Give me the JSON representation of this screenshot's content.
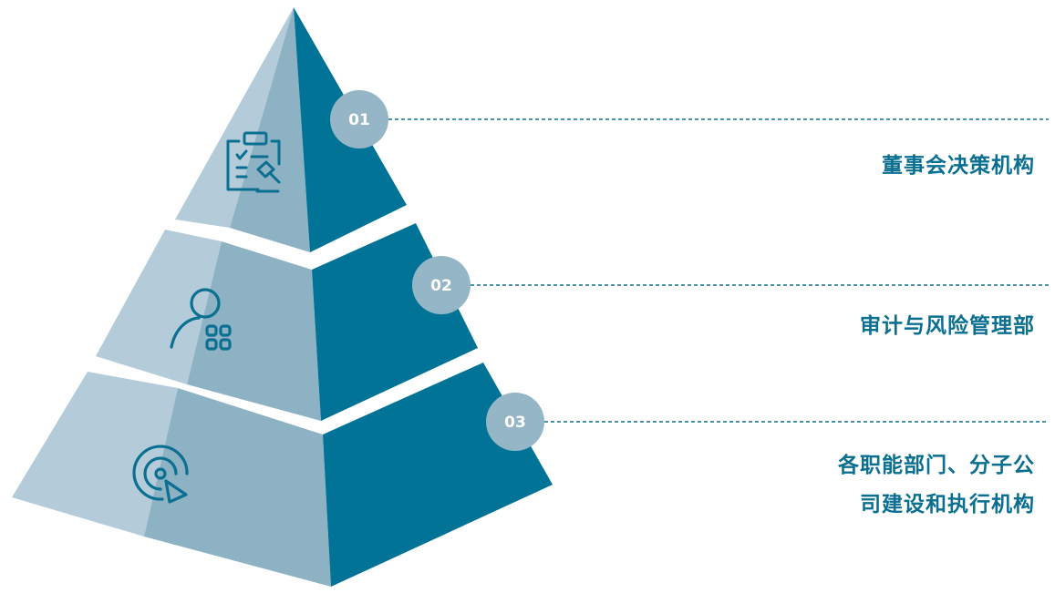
{
  "levels": [
    {
      "number": "01",
      "label": "董事会决策机构",
      "icon": "clipboard-gavel-icon"
    },
    {
      "number": "02",
      "label": "审计与风险管理部",
      "icon": "user-grid-icon"
    },
    {
      "number": "03",
      "label_lines": [
        "各职能部门、分子公",
        "司建设和执行机构"
      ],
      "icon": "target-cursor-icon"
    }
  ],
  "colors": {
    "dark_face": "#007396",
    "mid_face": "#8db2c4",
    "light_face": "#b4ccda",
    "badge": "#94b6c6",
    "line": "#0b6f91",
    "icon": "#0b6f91"
  }
}
